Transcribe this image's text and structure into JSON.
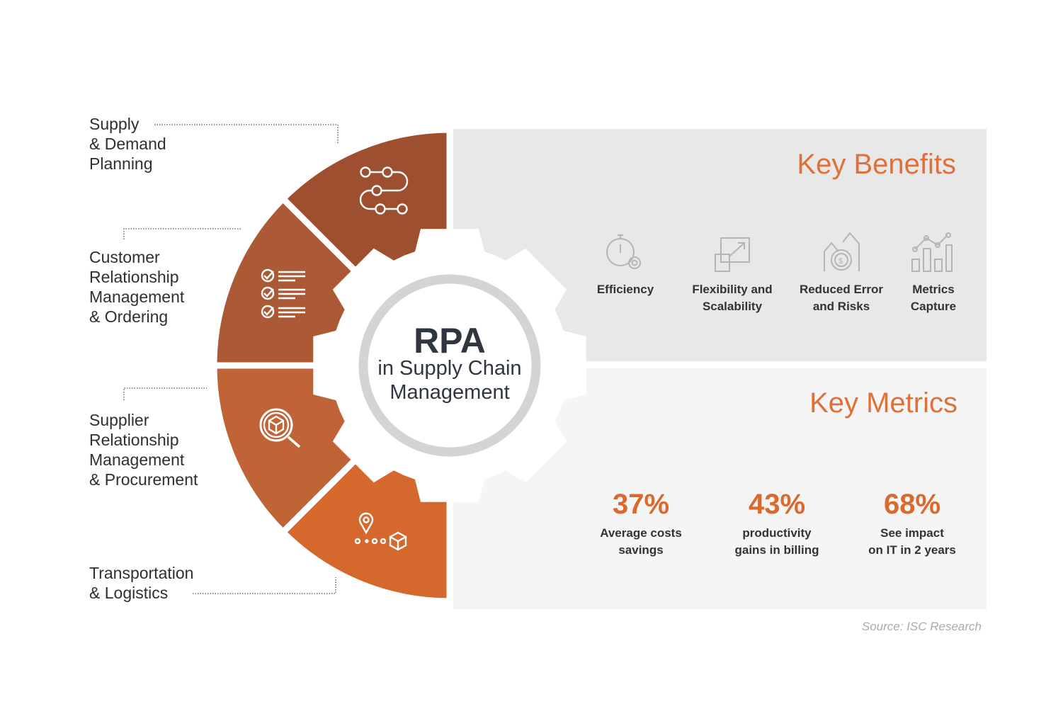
{
  "center": {
    "title": "RPA",
    "subtitle_line1": "in Supply Chain",
    "subtitle_line2": "Management"
  },
  "segments": [
    {
      "label": "Supply\n& Demand\nPlanning",
      "icon": "workflow-icon",
      "color": "#9e4f2f"
    },
    {
      "label": "Customer\nRelationship\nManagement\n& Ordering",
      "icon": "checklist-icon",
      "color": "#ab5a35"
    },
    {
      "label": "Supplier\nRelationship\nManagement\n& Procurement",
      "icon": "search-box-icon",
      "color": "#c06336"
    },
    {
      "label": "Transportation\n& Logistics",
      "icon": "location-delivery-icon",
      "color": "#d5682c"
    }
  ],
  "key_benefits": {
    "title": "Key Benefits",
    "items": [
      {
        "label": "Efficiency",
        "icon": "stopwatch-gear-icon"
      },
      {
        "label": "Flexibility and\nScalability",
        "icon": "resize-icon"
      },
      {
        "label": "Reduced Error\nand Risks",
        "icon": "money-growth-icon"
      },
      {
        "label": "Metrics\nCapture",
        "icon": "bar-chart-icon"
      }
    ]
  },
  "key_metrics": {
    "title": "Key Metrics",
    "items": [
      {
        "value": "37%",
        "label": "Average costs\nsavings"
      },
      {
        "value": "43%",
        "label": "productivity\ngains in billing"
      },
      {
        "value": "68%",
        "label": "See impact\non IT in 2 years"
      }
    ]
  },
  "source": "Source: ISC Research",
  "colors": {
    "accent": "#d9692d",
    "panel_top": "#e8e8e8",
    "panel_bottom": "#f5f5f5",
    "ring": "#d4d4d4"
  }
}
